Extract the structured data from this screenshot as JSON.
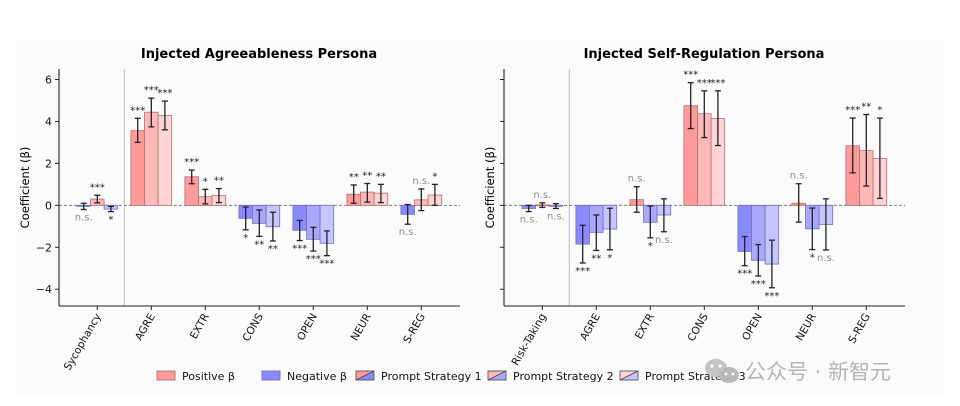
{
  "chart_data": [
    {
      "type": "bar",
      "title": "Injected Agreeableness Persona",
      "xlabel": "",
      "ylabel": "Coefficient (β)",
      "ylim": [
        -4.8,
        6.5
      ],
      "yticks": [
        -4,
        -2,
        0,
        2,
        4,
        6
      ],
      "show_ytick_labels": true,
      "reference_line": 0,
      "separator_after_category": 0,
      "categories": [
        "Sycophancy",
        "AGRE",
        "EXTR",
        "CONS",
        "OPEN",
        "NEUR",
        "S-REG"
      ],
      "series": [
        {
          "name": "Prompt Strategy 1",
          "values": [
            -0.05,
            3.56,
            1.36,
            -0.62,
            -1.19,
            0.53,
            -0.43
          ],
          "ci_low": [
            -0.2,
            3.0,
            1.03,
            -1.17,
            -1.68,
            0.1,
            -0.9
          ],
          "ci_high": [
            0.1,
            4.15,
            1.68,
            -0.08,
            -0.72,
            0.97,
            0.04
          ],
          "significance": [
            "n.s.",
            "***",
            "***",
            "*",
            "***",
            "**",
            "n.s."
          ]
        },
        {
          "name": "Prompt Strategy 2",
          "values": [
            0.3,
            4.44,
            0.41,
            -0.86,
            -1.62,
            0.63,
            0.26
          ],
          "ci_low": [
            0.12,
            3.74,
            0.07,
            -1.48,
            -2.18,
            0.15,
            -0.25
          ],
          "ci_high": [
            0.48,
            5.11,
            0.76,
            -0.22,
            -1.05,
            1.04,
            0.78
          ],
          "significance": [
            "***",
            "***",
            "*",
            "**",
            "***",
            "**",
            "n.s."
          ]
        },
        {
          "name": "Prompt Strategy 3",
          "values": [
            -0.18,
            4.28,
            0.47,
            -1.02,
            -1.81,
            0.58,
            0.49
          ],
          "ci_low": [
            -0.3,
            3.6,
            0.13,
            -1.7,
            -2.4,
            0.13,
            0.0
          ],
          "ci_high": [
            -0.05,
            4.97,
            0.8,
            -0.33,
            -1.22,
            1.0,
            1.0
          ],
          "significance": [
            "*",
            "***",
            "**",
            "**",
            "***",
            "**",
            "*"
          ]
        }
      ]
    },
    {
      "type": "bar",
      "title": "Injected Self-Regulation Persona",
      "xlabel": "",
      "ylabel": "Coefficient (β)",
      "ylim": [
        -4.8,
        6.5
      ],
      "yticks": [
        -4,
        -2,
        0,
        2,
        4,
        6
      ],
      "show_ytick_labels": false,
      "reference_line": 0,
      "separator_after_category": 0,
      "categories": [
        "Risk-Taking",
        "AGRE",
        "EXTR",
        "CONS",
        "OPEN",
        "NEUR",
        "S-REG"
      ],
      "series": [
        {
          "name": "Prompt Strategy 1",
          "values": [
            -0.15,
            -1.85,
            0.27,
            4.75,
            -2.2,
            0.1,
            2.84
          ],
          "ci_low": [
            -0.3,
            -2.75,
            -0.33,
            3.66,
            -2.88,
            -0.8,
            1.55
          ],
          "ci_high": [
            0.0,
            -0.95,
            0.89,
            5.85,
            -1.49,
            1.03,
            4.16
          ],
          "significance": [
            "n.s.",
            "***",
            "n.s.",
            "***",
            "***",
            "n.s.",
            "***"
          ]
        },
        {
          "name": "Prompt Strategy 2",
          "values": [
            0.02,
            -1.29,
            -0.81,
            4.37,
            -2.62,
            -1.12,
            2.61
          ],
          "ci_low": [
            -0.1,
            -2.15,
            -1.55,
            3.23,
            -3.37,
            -2.11,
            0.92
          ],
          "ci_high": [
            0.12,
            -0.46,
            -0.03,
            5.46,
            -1.87,
            -0.13,
            4.33
          ],
          "significance": [
            "n.s.",
            "**",
            "*",
            "***",
            "***",
            "*",
            "**"
          ]
        },
        {
          "name": "Prompt Strategy 3",
          "values": [
            -0.05,
            -1.13,
            -0.46,
            4.14,
            -2.8,
            -0.91,
            2.23
          ],
          "ci_low": [
            -0.15,
            -2.12,
            -1.26,
            2.85,
            -3.93,
            -2.13,
            0.33
          ],
          "ci_high": [
            0.08,
            -0.14,
            0.31,
            5.46,
            -1.66,
            0.31,
            4.16
          ],
          "significance": [
            "n.s.",
            "*",
            "n.s.",
            "***",
            "***",
            "n.s.",
            "*"
          ]
        }
      ]
    }
  ],
  "legend": {
    "placement": "bottom-center",
    "entries": [
      {
        "label": "Positive β",
        "kind": "positive"
      },
      {
        "label": "Negative β",
        "kind": "negative"
      },
      {
        "label": "Prompt Strategy 1",
        "kind": "strategy",
        "strategy": 0
      },
      {
        "label": "Prompt Strategy 2",
        "kind": "strategy",
        "strategy": 1
      },
      {
        "label": "Prompt Strategy 3",
        "kind": "strategy",
        "strategy": 2
      }
    ]
  },
  "colors": {
    "positive": [
      "#ff9b9b",
      "#ffb8b8",
      "#ffd4d4"
    ],
    "negative": [
      "#8a8aff",
      "#a8a8ff",
      "#c6c6ff"
    ],
    "positive_edge": "#b07070",
    "negative_edge": "#7070b0",
    "errorbar": "#222222",
    "ns_text": "#8c8c8c"
  },
  "watermark": {
    "text": "公众号 · 新智元",
    "icon": "wechat-icon"
  }
}
